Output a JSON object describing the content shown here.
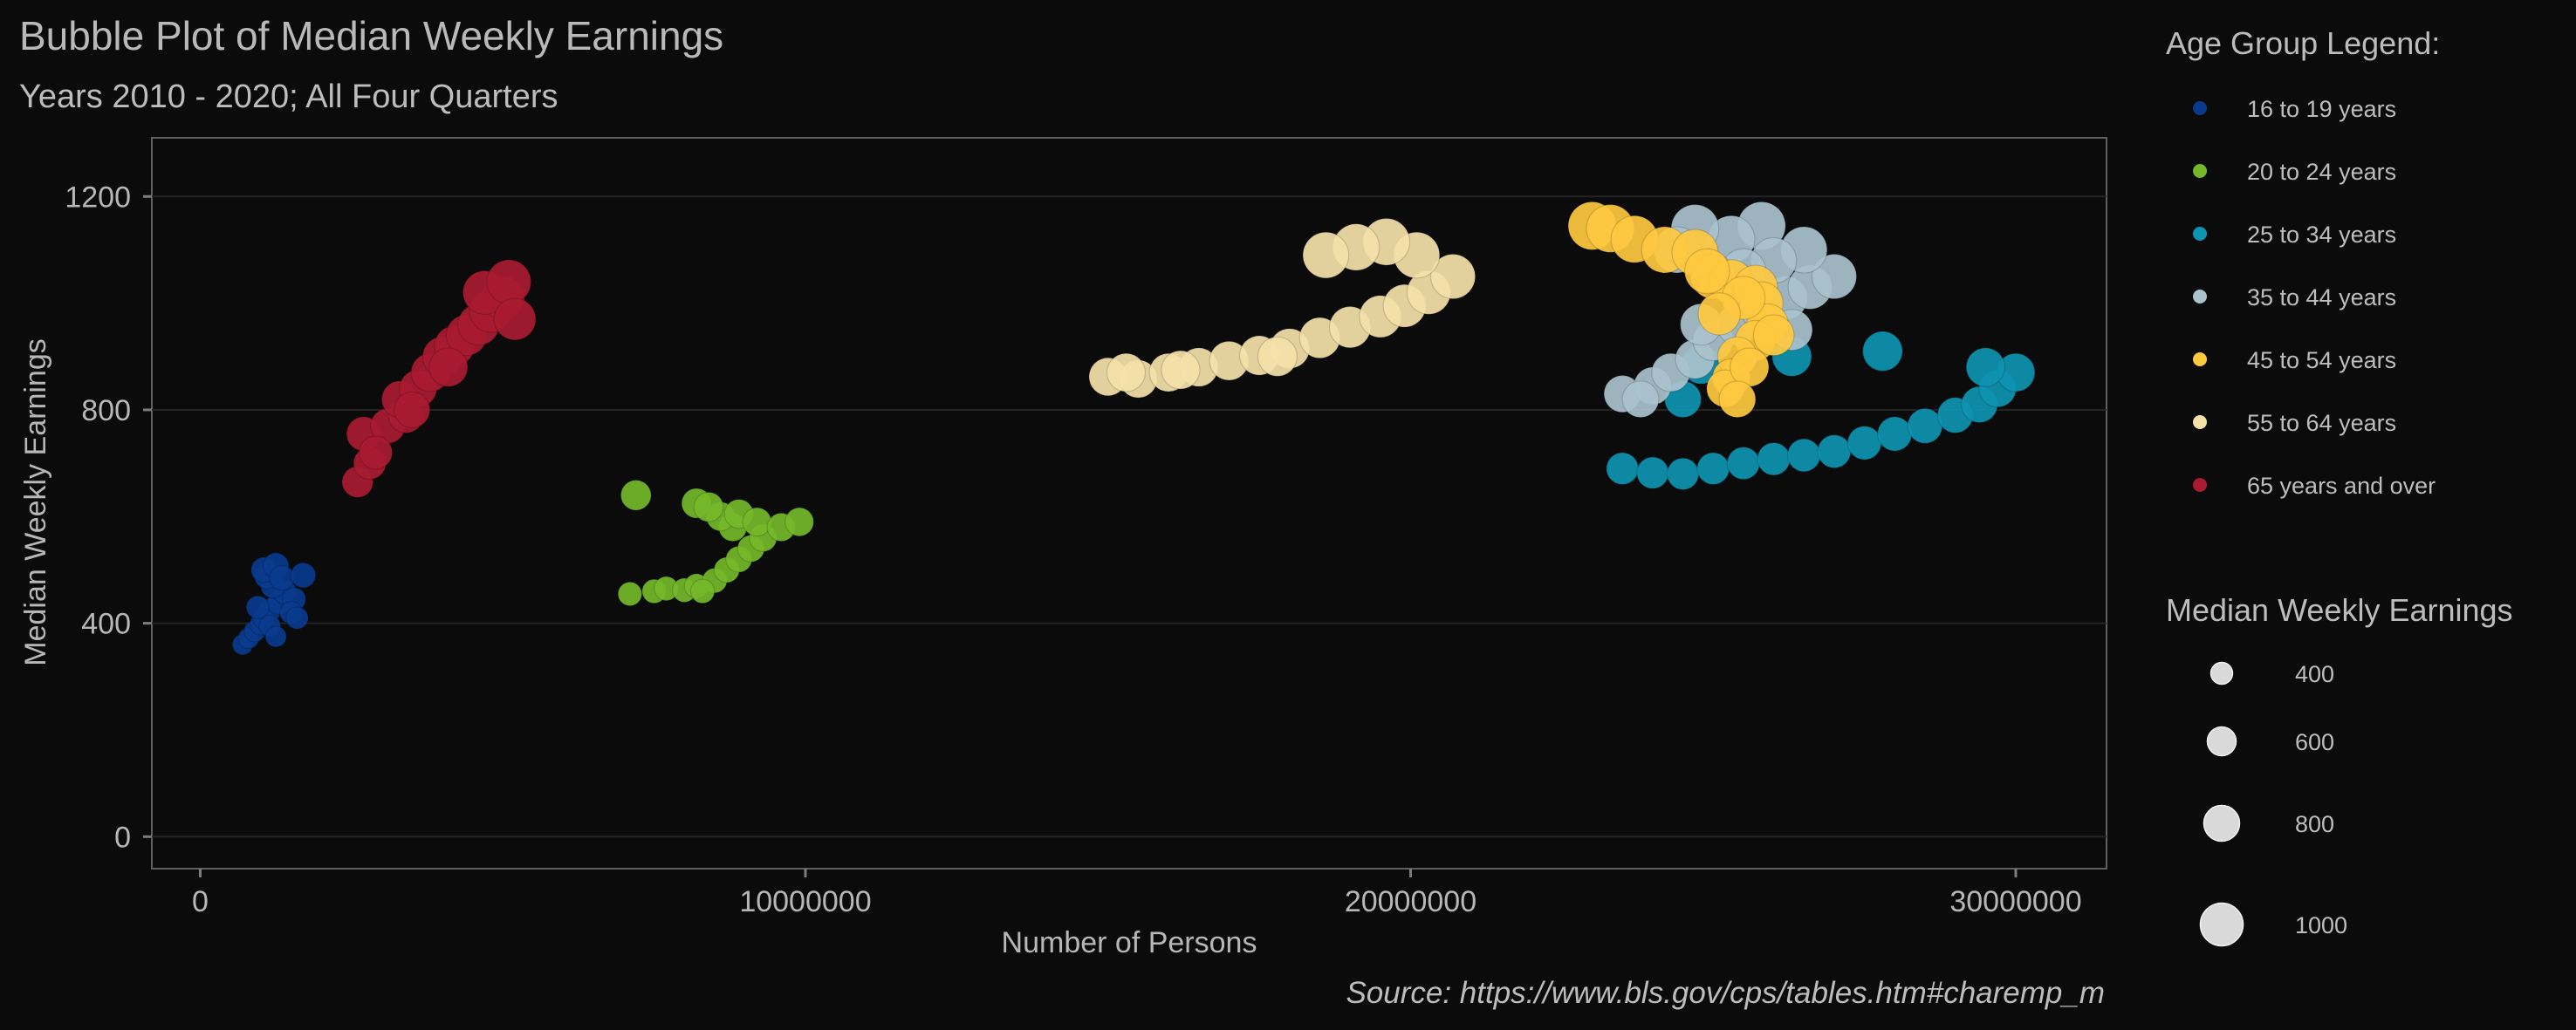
{
  "chart_data": {
    "type": "scatter",
    "title": "Bubble Plot of Median Weekly Earnings",
    "subtitle": "Years 2010 - 2020; All  Four Quarters",
    "xlabel": "Number of Persons",
    "ylabel": "Median Weekly Earnings",
    "xlim": [
      -800000,
      31500000
    ],
    "ylim": [
      -60,
      1310
    ],
    "xticks": [
      0,
      10000000,
      20000000,
      30000000
    ],
    "xtick_labels": [
      "0",
      "10000000",
      "20000000",
      "30000000"
    ],
    "yticks": [
      0,
      400,
      800,
      1200
    ],
    "ytick_labels": [
      "0",
      "400",
      "800",
      "1200"
    ],
    "grid": "horizontal",
    "legend_title": "Age Group Legend:",
    "legend_position": "right",
    "size_legend_title": "Median Weekly Earnings",
    "size_legend": [
      {
        "label": "400",
        "value": 400
      },
      {
        "label": "600",
        "value": 600
      },
      {
        "label": "800",
        "value": 800
      },
      {
        "label": "1000",
        "value": 1000
      }
    ],
    "source": "Source: https://www.bls.gov/cps/tables.htm#charemp_m",
    "series": [
      {
        "name": "16 to 19 years",
        "color": "#0a3a8c",
        "points": [
          [
            700000,
            360
          ],
          [
            800000,
            372
          ],
          [
            900000,
            385
          ],
          [
            1000000,
            398
          ],
          [
            1050000,
            410
          ],
          [
            1150000,
            425
          ],
          [
            1300000,
            438
          ],
          [
            1400000,
            458
          ],
          [
            1550000,
            445
          ],
          [
            1200000,
            470
          ],
          [
            1100000,
            488
          ],
          [
            1050000,
            500
          ],
          [
            1250000,
            508
          ],
          [
            1350000,
            485
          ],
          [
            1700000,
            490
          ],
          [
            1500000,
            420
          ],
          [
            1600000,
            410
          ],
          [
            950000,
            430
          ],
          [
            1150000,
            395
          ],
          [
            1250000,
            375
          ]
        ]
      },
      {
        "name": "20 to 24 years",
        "color": "#74b82a",
        "points": [
          [
            7200000,
            640
          ],
          [
            7100000,
            455
          ],
          [
            7500000,
            460
          ],
          [
            7700000,
            465
          ],
          [
            8000000,
            462
          ],
          [
            8200000,
            470
          ],
          [
            8500000,
            480
          ],
          [
            8300000,
            460
          ],
          [
            8700000,
            500
          ],
          [
            8900000,
            520
          ],
          [
            9100000,
            540
          ],
          [
            9300000,
            560
          ],
          [
            8800000,
            580
          ],
          [
            8600000,
            600
          ],
          [
            8200000,
            625
          ],
          [
            8400000,
            618
          ],
          [
            8900000,
            605
          ],
          [
            9200000,
            590
          ],
          [
            9600000,
            580
          ],
          [
            9900000,
            590
          ]
        ]
      },
      {
        "name": "25 to 34 years",
        "color": "#0e93b0",
        "points": [
          [
            23500000,
            690
          ],
          [
            24000000,
            682
          ],
          [
            24500000,
            680
          ],
          [
            25000000,
            690
          ],
          [
            25500000,
            700
          ],
          [
            26000000,
            708
          ],
          [
            26500000,
            715
          ],
          [
            27000000,
            722
          ],
          [
            27500000,
            738
          ],
          [
            28000000,
            755
          ],
          [
            28500000,
            770
          ],
          [
            29000000,
            790
          ],
          [
            29400000,
            810
          ],
          [
            29700000,
            840
          ],
          [
            30000000,
            870
          ],
          [
            29500000,
            880
          ],
          [
            27800000,
            910
          ],
          [
            26300000,
            900
          ],
          [
            24800000,
            885
          ],
          [
            24500000,
            820
          ]
        ]
      },
      {
        "name": "35 to 44 years",
        "color": "#a9c2cc",
        "points": [
          [
            23500000,
            830
          ],
          [
            24000000,
            845
          ],
          [
            24300000,
            870
          ],
          [
            24700000,
            895
          ],
          [
            25000000,
            930
          ],
          [
            25400000,
            960
          ],
          [
            25800000,
            990
          ],
          [
            26200000,
            1010
          ],
          [
            26600000,
            1030
          ],
          [
            27000000,
            1050
          ],
          [
            26500000,
            1100
          ],
          [
            25800000,
            1145
          ],
          [
            25300000,
            1120
          ],
          [
            24700000,
            1140
          ],
          [
            24400000,
            1100
          ],
          [
            26000000,
            1080
          ],
          [
            25500000,
            1060
          ],
          [
            23800000,
            820
          ],
          [
            24800000,
            960
          ],
          [
            26300000,
            950
          ]
        ]
      },
      {
        "name": "45 to 54 years",
        "color": "#fec83f",
        "points": [
          [
            23000000,
            1145
          ],
          [
            23300000,
            1140
          ],
          [
            23700000,
            1120
          ],
          [
            24200000,
            1100
          ],
          [
            24700000,
            1095
          ],
          [
            25000000,
            1050
          ],
          [
            25300000,
            1040
          ],
          [
            25700000,
            1030
          ],
          [
            25800000,
            1000
          ],
          [
            25900000,
            960
          ],
          [
            25700000,
            930
          ],
          [
            25400000,
            900
          ],
          [
            25300000,
            860
          ],
          [
            25200000,
            840
          ],
          [
            25600000,
            880
          ],
          [
            26000000,
            940
          ],
          [
            25500000,
            1010
          ],
          [
            24900000,
            1060
          ],
          [
            25100000,
            980
          ],
          [
            25400000,
            820
          ]
        ]
      },
      {
        "name": "55 to 64 years",
        "color": "#f4e1a9",
        "points": [
          [
            15000000,
            862
          ],
          [
            15500000,
            858
          ],
          [
            16000000,
            870
          ],
          [
            16500000,
            880
          ],
          [
            17000000,
            892
          ],
          [
            17500000,
            902
          ],
          [
            18000000,
            915
          ],
          [
            18500000,
            935
          ],
          [
            19000000,
            955
          ],
          [
            19500000,
            975
          ],
          [
            19900000,
            995
          ],
          [
            20300000,
            1020
          ],
          [
            20700000,
            1050
          ],
          [
            20100000,
            1090
          ],
          [
            19600000,
            1115
          ],
          [
            19100000,
            1105
          ],
          [
            18600000,
            1090
          ],
          [
            15300000,
            870
          ],
          [
            16200000,
            875
          ],
          [
            17800000,
            900
          ]
        ]
      },
      {
        "name": "65 years and over",
        "color": "#a91b30",
        "points": [
          [
            2600000,
            665
          ],
          [
            2800000,
            700
          ],
          [
            2700000,
            755
          ],
          [
            3100000,
            770
          ],
          [
            3400000,
            790
          ],
          [
            3300000,
            820
          ],
          [
            3600000,
            840
          ],
          [
            3800000,
            870
          ],
          [
            4000000,
            900
          ],
          [
            4200000,
            920
          ],
          [
            4400000,
            940
          ],
          [
            4600000,
            960
          ],
          [
            4800000,
            985
          ],
          [
            5000000,
            1010
          ],
          [
            4700000,
            1020
          ],
          [
            5100000,
            1040
          ],
          [
            5200000,
            970
          ],
          [
            4100000,
            880
          ],
          [
            3500000,
            800
          ],
          [
            2900000,
            720
          ]
        ]
      }
    ]
  }
}
